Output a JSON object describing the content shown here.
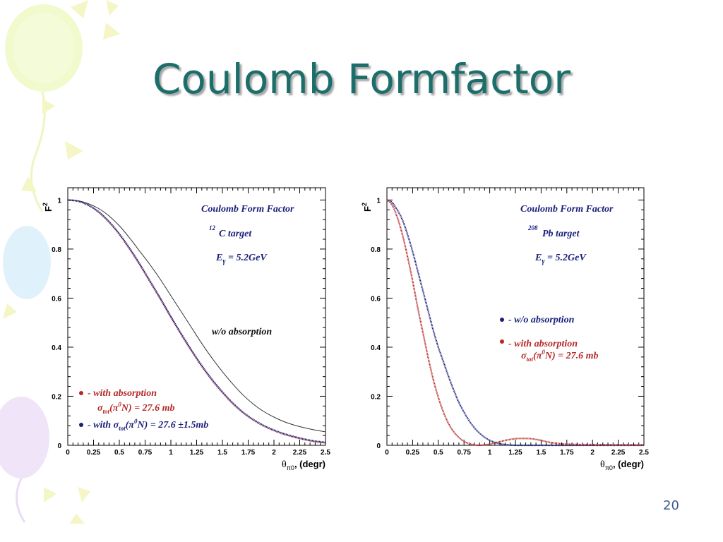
{
  "slide": {
    "title": "Coulomb Formfactor",
    "page_number": "20"
  },
  "colors": {
    "title": "#1b6e6a",
    "blue": "#1a1f7a",
    "red": "#b52828",
    "black": "#333333"
  },
  "chart_data": [
    {
      "type": "line",
      "title": "Coulomb Form Factor",
      "target_mass": "12",
      "target_name": "C target",
      "energy_label": "E",
      "energy_sub": "γ",
      "energy_value": " = 5.2GeV",
      "ylabel": "F",
      "ylabel_sup": "2",
      "xlabel_theta": "θ",
      "xlabel_sub": "π0",
      "xlabel_rest": ", (degr)",
      "xlim": [
        0,
        2.5
      ],
      "ylim": [
        0,
        1.05
      ],
      "x_ticks": [
        "0",
        "0.25",
        "0.5",
        "0.75",
        "1",
        "1.25",
        "1.5",
        "1.75",
        "2",
        "2.25",
        "2.5"
      ],
      "y_ticks": [
        "0",
        "0.2",
        "0.4",
        "0.6",
        "0.8",
        "1"
      ],
      "annotations": {
        "wo_label": "w/o absorption",
        "with_label": "- with absorption",
        "sigma_prefix": "σ",
        "sigma_sub": "tot",
        "sigma_paren_open": "(π",
        "sigma_sup": "0",
        "sigma_rest": "N) = 27.6 mb",
        "blue_prefix": "- with σ",
        "blue_sub": "tot",
        "blue_paren_open": "(π",
        "blue_sup": "0",
        "blue_rest": "N) = 27.6 ±1.5mb"
      },
      "x": [
        0,
        0.1,
        0.2,
        0.3,
        0.4,
        0.5,
        0.6,
        0.7,
        0.8,
        0.9,
        1.0,
        1.1,
        1.2,
        1.3,
        1.4,
        1.5,
        1.6,
        1.7,
        1.8,
        1.9,
        2.0,
        2.1,
        2.2,
        2.3,
        2.4,
        2.5
      ],
      "series": [
        {
          "color": "black",
          "values": [
            1.0,
            0.997,
            0.985,
            0.965,
            0.935,
            0.895,
            0.845,
            0.79,
            0.735,
            0.675,
            0.61,
            0.545,
            0.48,
            0.415,
            0.355,
            0.3,
            0.25,
            0.205,
            0.168,
            0.138,
            0.115,
            0.096,
            0.082,
            0.071,
            0.062,
            0.055
          ]
        },
        {
          "color": "red",
          "values": [
            1.0,
            0.995,
            0.978,
            0.95,
            0.91,
            0.86,
            0.8,
            0.735,
            0.665,
            0.595,
            0.522,
            0.452,
            0.385,
            0.322,
            0.265,
            0.215,
            0.17,
            0.133,
            0.103,
            0.079,
            0.06,
            0.045,
            0.033,
            0.023,
            0.015,
            0.01
          ]
        },
        {
          "color": "blue",
          "values": [
            1.0,
            0.995,
            0.979,
            0.952,
            0.912,
            0.862,
            0.803,
            0.738,
            0.668,
            0.598,
            0.525,
            0.455,
            0.388,
            0.325,
            0.268,
            0.218,
            0.173,
            0.135,
            0.105,
            0.081,
            0.062,
            0.047,
            0.035,
            0.025,
            0.017,
            0.012
          ]
        }
      ]
    },
    {
      "type": "line",
      "title": "Coulomb Form Factor",
      "target_mass": "208",
      "target_name": "Pb target",
      "energy_label": "E",
      "energy_sub": "γ",
      "energy_value": " = 5.2GeV",
      "ylabel": "F",
      "ylabel_sup": "2",
      "xlabel_theta": "θ",
      "xlabel_sub": "π0",
      "xlabel_rest": ", (degr)",
      "xlim": [
        0,
        2.5
      ],
      "ylim": [
        0,
        1.05
      ],
      "x_ticks": [
        "0",
        "0.25",
        "0.5",
        "0.75",
        "1",
        "1.25",
        "1.5",
        "1.75",
        "2",
        "2.25",
        "2.5"
      ],
      "y_ticks": [
        "0",
        "0.2",
        "0.4",
        "0.6",
        "0.8",
        "1"
      ],
      "annotations": {
        "wo_label": "- w/o absorption",
        "with_label": "- with absorption",
        "sigma_prefix": "σ",
        "sigma_sub": "tot",
        "sigma_paren_open": "(π",
        "sigma_sup": "0",
        "sigma_rest": "N) = 27.6 mb"
      },
      "x": [
        0,
        0.05,
        0.1,
        0.15,
        0.2,
        0.25,
        0.3,
        0.35,
        0.4,
        0.45,
        0.5,
        0.55,
        0.6,
        0.65,
        0.7,
        0.75,
        0.8,
        0.85,
        0.9,
        0.95,
        1.0,
        1.05,
        1.1,
        1.15,
        1.2,
        1.25,
        1.3,
        1.35,
        1.4,
        1.45,
        1.5,
        1.55,
        1.6,
        1.7,
        1.8,
        1.9,
        2.0,
        2.2,
        2.5
      ],
      "series": [
        {
          "color": "blue",
          "values": [
            1.0,
            0.99,
            0.96,
            0.92,
            0.86,
            0.79,
            0.71,
            0.63,
            0.55,
            0.47,
            0.4,
            0.34,
            0.28,
            0.225,
            0.175,
            0.135,
            0.1,
            0.072,
            0.05,
            0.033,
            0.02,
            0.012,
            0.006,
            0.003,
            0.001,
            0.0,
            0.0,
            0.0,
            0.0,
            0.0,
            0.0,
            0.0,
            0.0,
            0.0,
            0.0,
            0.0,
            0.0,
            0.0,
            0.0
          ]
        },
        {
          "color": "red",
          "values": [
            1.0,
            0.98,
            0.93,
            0.86,
            0.77,
            0.67,
            0.56,
            0.46,
            0.36,
            0.27,
            0.195,
            0.135,
            0.088,
            0.055,
            0.032,
            0.016,
            0.007,
            0.002,
            0.0,
            0.002,
            0.005,
            0.01,
            0.015,
            0.02,
            0.024,
            0.027,
            0.028,
            0.028,
            0.027,
            0.024,
            0.02,
            0.015,
            0.011,
            0.006,
            0.004,
            0.003,
            0.003,
            0.002,
            0.002
          ]
        }
      ]
    }
  ]
}
